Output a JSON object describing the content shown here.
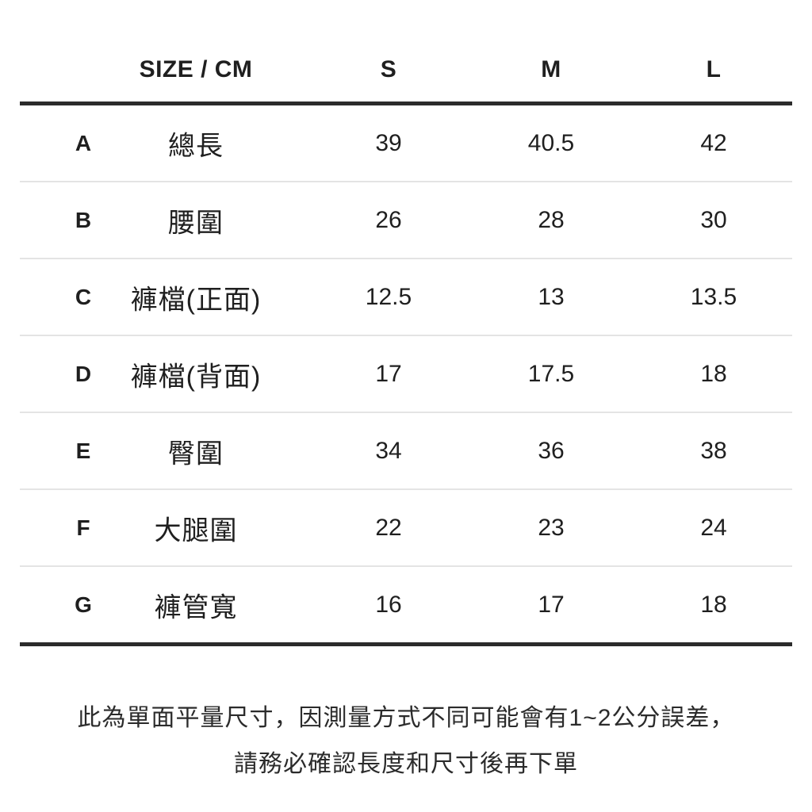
{
  "chart_data": {
    "type": "table",
    "title": "SIZE / CM",
    "columns": [
      "",
      "SIZE / CM",
      "S",
      "M",
      "L"
    ],
    "rows": [
      [
        "A",
        "總長",
        39,
        40.5,
        42
      ],
      [
        "B",
        "腰圍",
        26,
        28,
        30
      ],
      [
        "C",
        "褲檔(正面)",
        12.5,
        13,
        13.5
      ],
      [
        "D",
        "褲檔(背面)",
        17,
        17.5,
        18
      ],
      [
        "E",
        "臀圍",
        34,
        36,
        38
      ],
      [
        "F",
        "大腿圍",
        22,
        23,
        24
      ],
      [
        "G",
        "褲管寬",
        16,
        17,
        18
      ]
    ],
    "notes": [
      "此為單面平量尺寸，因測量方式不同可能會有1~2公分誤差，",
      "請務必確認長度和尺寸後再下單"
    ]
  },
  "header": {
    "corner_label": "SIZE / CM",
    "sizes": [
      "S",
      "M",
      "L"
    ]
  },
  "rows": [
    {
      "letter": "A",
      "label": "總長",
      "values": [
        "39",
        "40.5",
        "42"
      ]
    },
    {
      "letter": "B",
      "label": "腰圍",
      "values": [
        "26",
        "28",
        "30"
      ]
    },
    {
      "letter": "C",
      "label": "褲檔(正面)",
      "values": [
        "12.5",
        "13",
        "13.5"
      ]
    },
    {
      "letter": "D",
      "label": "褲檔(背面)",
      "values": [
        "17",
        "17.5",
        "18"
      ]
    },
    {
      "letter": "E",
      "label": "臀圍",
      "values": [
        "34",
        "36",
        "38"
      ]
    },
    {
      "letter": "F",
      "label": "大腿圍",
      "values": [
        "22",
        "23",
        "24"
      ]
    },
    {
      "letter": "G",
      "label": "褲管寬",
      "values": [
        "16",
        "17",
        "18"
      ]
    }
  ],
  "footer": {
    "line1": "此為單面平量尺寸，因測量方式不同可能會有1~2公分誤差，",
    "line2": "請務必確認長度和尺寸後再下單"
  },
  "colors": {
    "background": "#ffffff",
    "text": "#1f1f1f",
    "thick_line": "#2b2b2b",
    "divider": "#e4e4e4"
  }
}
